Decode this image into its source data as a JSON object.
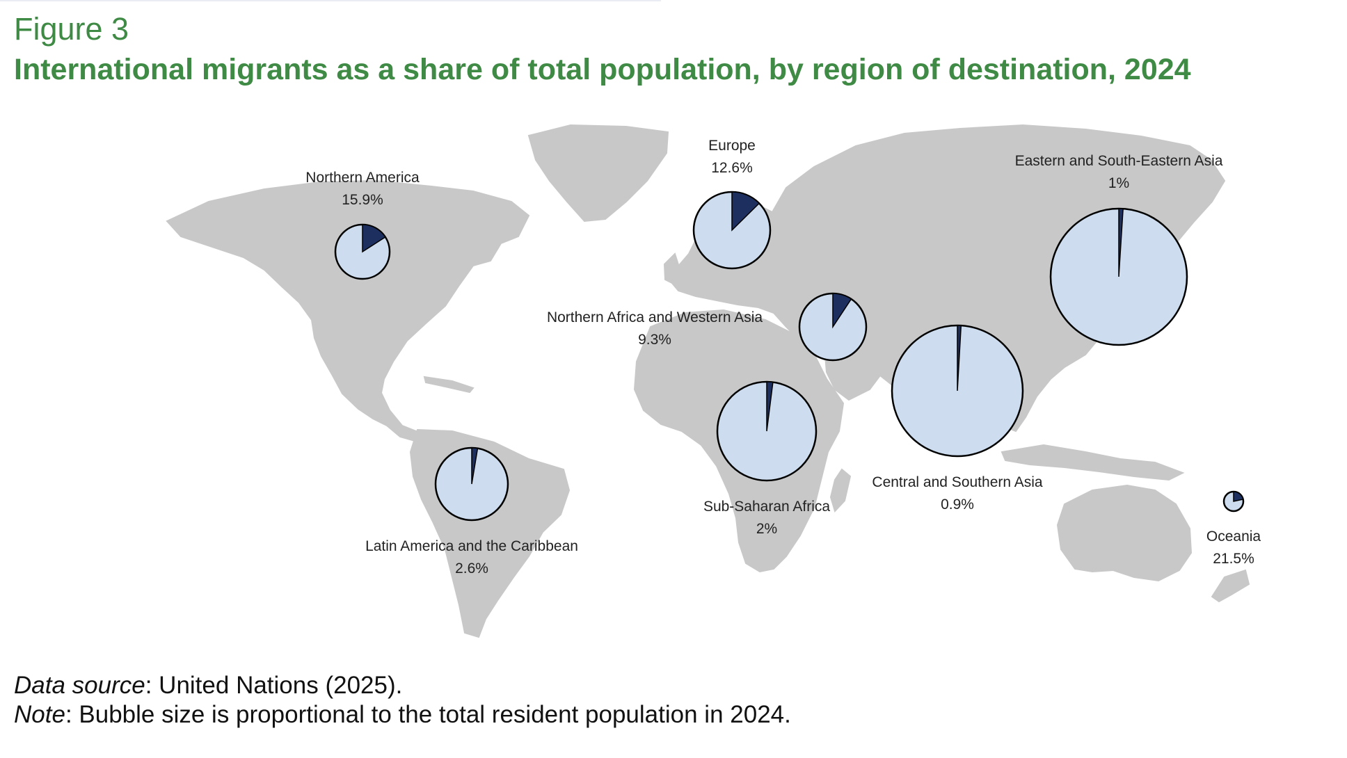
{
  "figure_label": "Figure 3",
  "title": "International migrants as a share of total population, by region of destination, 2024",
  "source": {
    "label": "Data source",
    "text": ": United Nations (2025)."
  },
  "note": {
    "label": "Note",
    "text": ": Bubble size is proportional to the total resident population in 2024."
  },
  "colors": {
    "land": "#c8c8c8",
    "pie_base": "#cddcee",
    "pie_slice": "#1c2f5f",
    "title": "#3f8a45"
  },
  "chart_data": {
    "type": "pie",
    "series_meaning": "share of international migrants in total population",
    "regions": [
      {
        "name": "Northern America",
        "value_label": "15.9%",
        "share": 15.9
      },
      {
        "name": "Europe",
        "value_label": "12.6%",
        "share": 12.6
      },
      {
        "name": "Eastern and South-Eastern Asia",
        "value_label": "1%",
        "share": 1.0
      },
      {
        "name": "Northern Africa and Western Asia",
        "value_label": "9.3%",
        "share": 9.3
      },
      {
        "name": "Central and Southern Asia",
        "value_label": "0.9%",
        "share": 0.9
      },
      {
        "name": "Sub-Saharan Africa",
        "value_label": "2%",
        "share": 2.0
      },
      {
        "name": "Latin America and the Caribbean",
        "value_label": "2.6%",
        "share": 2.6
      },
      {
        "name": "Oceania",
        "value_label": "21.5%",
        "share": 21.5
      }
    ]
  }
}
